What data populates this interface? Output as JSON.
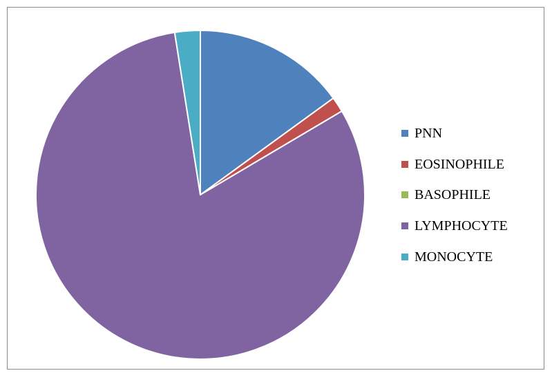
{
  "chart_data": {
    "type": "pie",
    "title": "",
    "categories": [
      "PNN",
      "EOSINOPHILE",
      "BASOPHILE",
      "LYMPHOCYTE",
      "MONOCYTE"
    ],
    "values": [
      15,
      1.5,
      0,
      81,
      2.5
    ],
    "colors": [
      "#4F81BD",
      "#C0504D",
      "#9BBB59",
      "#8064A2",
      "#4BACC6"
    ],
    "start_angle_deg": 0,
    "direction": "clockwise",
    "legend": {
      "position": "right",
      "items": [
        {
          "label": "PNN",
          "color": "#4F81BD"
        },
        {
          "label": "EOSINOPHILE",
          "color": "#C0504D"
        },
        {
          "label": "BASOPHILE",
          "color": "#9BBB59"
        },
        {
          "label": "LYMPHOCYTE",
          "color": "#8064A2"
        },
        {
          "label": "MONOCYTE",
          "color": "#4BACC6"
        }
      ]
    }
  }
}
